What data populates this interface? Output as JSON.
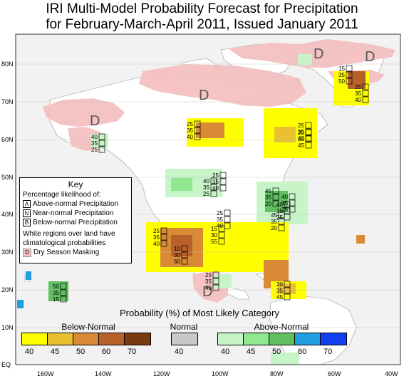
{
  "title": {
    "line1": "IRI Multi-Model Probability Forecast for Precipitation",
    "line2": "for February-March-April 2011, Issued January 2011"
  },
  "map": {
    "lat_labels": [
      "80N",
      "70N",
      "60N",
      "50N",
      "40N",
      "30N",
      "20N",
      "10N",
      "EQ"
    ],
    "lon_labels": [
      "160W",
      "140W",
      "120W",
      "100W",
      "80W",
      "60W",
      "40W"
    ],
    "dry_mark": "D",
    "colors": {
      "dry": "#f4c0c0",
      "ocean": "#f2f2f2",
      "land": "#ffffff"
    },
    "stacks": [
      {
        "v": [
          "40",
          "35",
          "25"
        ]
      },
      {
        "v": [
          "25",
          "35",
          "40"
        ]
      },
      {
        "v": [
          "20",
          "35",
          "45"
        ]
      },
      {
        "v": [
          "25",
          "35",
          "40"
        ]
      },
      {
        "v": [
          "45",
          "35",
          "20"
        ]
      },
      {
        "v": [
          "40",
          "35",
          "25"
        ]
      },
      {
        "v": [
          "40",
          "35",
          "25"
        ]
      },
      {
        "v": [
          "45",
          "35",
          "20"
        ]
      },
      {
        "v": [
          "40",
          "35",
          "25"
        ]
      },
      {
        "v": [
          "25",
          "35",
          "40"
        ]
      },
      {
        "v": [
          "25",
          "35",
          "40"
        ]
      },
      {
        "v": [
          "15",
          "30",
          "55"
        ]
      },
      {
        "v": [
          "10",
          "30",
          "60"
        ]
      },
      {
        "v": [
          "25",
          "35",
          "40"
        ]
      },
      {
        "v": [
          "20",
          "35",
          "45"
        ]
      },
      {
        "v": [
          "50",
          "35",
          "15"
        ]
      },
      {
        "v": [
          "25",
          "35",
          "40"
        ]
      },
      {
        "v": [
          "15",
          "35",
          "50"
        ]
      },
      {
        "v": [
          "25",
          "35",
          "40"
        ]
      }
    ]
  },
  "key": {
    "title": "Key",
    "subtitle": "Percentage likelihood of:",
    "items": [
      {
        "letter": "A",
        "label": "Above-normal Precipitation"
      },
      {
        "letter": "N",
        "label": "Near-normal Precipitation"
      },
      {
        "letter": "B",
        "label": "Below-normal Precipitation"
      }
    ],
    "note": "White regions over land have climatological probabilities",
    "dry_letter": "D",
    "dry_label": "Dry Season Masking"
  },
  "legend": {
    "title": "Probability (%) of Most Likely Category",
    "groups": [
      {
        "label": "Below-Normal",
        "values": [
          "40",
          "45",
          "50",
          "60",
          "70"
        ],
        "colors": [
          "#ffff00",
          "#e8c030",
          "#d98a35",
          "#b8602a",
          "#7a3a10"
        ]
      },
      {
        "label": "Normal",
        "values": [
          "40"
        ],
        "colors": [
          "#c8c8c8"
        ]
      },
      {
        "label": "Above-Normal",
        "values": [
          "40",
          "45",
          "50",
          "60",
          "70"
        ],
        "colors": [
          "#c8f5c8",
          "#90e890",
          "#60c060",
          "#20a0e0",
          "#1040f0"
        ]
      }
    ]
  }
}
